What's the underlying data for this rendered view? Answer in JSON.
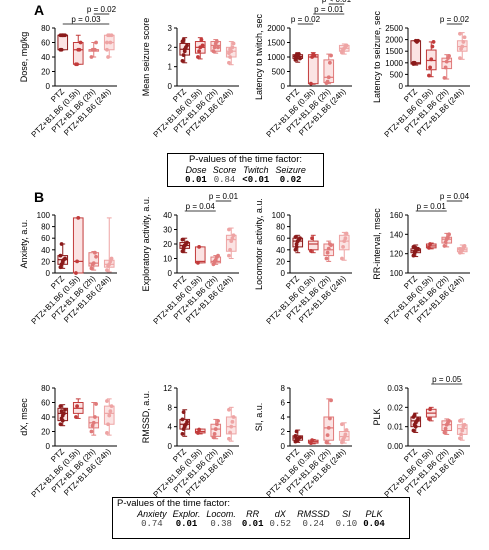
{
  "panel_labels": {
    "a": "A",
    "b": "B"
  },
  "categories": [
    "PTZ",
    "PTZ+B1.B6 (0.5h)",
    "PTZ+B1.B6 (2h)",
    "PTZ+B1.B6 (24h)"
  ],
  "colors": {
    "dark": "#8b1a1a",
    "medium": "#c23b3b",
    "light": "#e07a7a",
    "lighter": "#eea4a4",
    "box_fill": "#fbe3e3",
    "point": "#a52a2a"
  },
  "pvalue_boxes": {
    "top": {
      "title": "P-values of the time factor:",
      "headers": [
        "Dose",
        "Score",
        "Twitch",
        "Seizure"
      ],
      "values": [
        "0.01",
        "0.84",
        "<0.01",
        "0.02"
      ],
      "significant": [
        true,
        false,
        true,
        true
      ]
    },
    "bottom": {
      "title": "P-values of the time factor:",
      "headers": [
        "Anxiety",
        "Explor.",
        "Locom.",
        "RR",
        "dX",
        "RMSSD",
        "SI",
        "PLK"
      ],
      "values": [
        "0.74",
        "0.01",
        "0.38",
        "0.01",
        "0.52",
        "0.24",
        "0.10",
        "0.04"
      ],
      "significant": [
        false,
        true,
        false,
        true,
        false,
        false,
        false,
        true
      ]
    }
  },
  "chart_data": [
    {
      "type": "box",
      "id": "dose",
      "ylabel": "Dose, mg/kg",
      "ylim": [
        0,
        80
      ],
      "yticks": [
        "0",
        "20",
        "40",
        "60",
        "80"
      ],
      "categories": [
        "PTZ",
        "PTZ+B1.B6 (0.5h)",
        "PTZ+B1.B6 (2h)",
        "PTZ+B1.B6 (24h)"
      ],
      "boxes": [
        {
          "min": 50,
          "q1": 50,
          "median": 70,
          "q3": 70,
          "max": 70
        },
        {
          "min": 30,
          "q1": 30,
          "median": 50,
          "q3": 60,
          "max": 70
        },
        {
          "min": 40,
          "q1": 48,
          "median": 50,
          "q3": 50,
          "max": 60
        },
        {
          "min": 40,
          "q1": 50,
          "median": 60,
          "q3": 70,
          "max": 70
        }
      ],
      "points": [
        [
          50,
          70,
          70,
          70,
          70,
          70,
          50,
          70
        ],
        [
          30,
          30,
          50,
          50,
          60
        ],
        [
          40,
          50,
          50,
          50,
          60
        ],
        [
          60,
          70,
          70,
          60,
          70,
          50,
          40
        ]
      ],
      "brackets": [
        {
          "from": 0,
          "to": 3,
          "label": "p = 0.03"
        },
        {
          "from": 2,
          "to": 3,
          "label": "p = 0.02"
        }
      ]
    },
    {
      "type": "box",
      "id": "score",
      "ylabel": "Mean seizure score",
      "ylim": [
        0,
        3
      ],
      "yticks": [
        "0",
        "1",
        "2",
        "3"
      ],
      "categories": [
        "PTZ",
        "PTZ+B1.B6 (0.5h)",
        "PTZ+B1.B6 (2h)",
        "PTZ+B1.B6 (24h)"
      ],
      "boxes": [
        {
          "min": 1.2,
          "q1": 1.6,
          "median": 1.9,
          "q3": 2.2,
          "max": 2.5
        },
        {
          "min": 1.4,
          "q1": 1.7,
          "median": 2.0,
          "q3": 2.3,
          "max": 2.5
        },
        {
          "min": 1.7,
          "q1": 1.8,
          "median": 2.1,
          "q3": 2.3,
          "max": 2.4
        },
        {
          "min": 1.1,
          "q1": 1.5,
          "median": 1.8,
          "q3": 2.0,
          "max": 2.3
        }
      ],
      "points": [
        [
          1.3,
          1.6,
          1.8,
          2.0,
          2.1,
          2.3,
          2.4,
          1.9
        ],
        [
          1.5,
          1.8,
          2.0,
          2.4,
          2.1
        ],
        [
          1.8,
          2.0,
          2.2,
          2.3,
          2.0
        ],
        [
          1.2,
          1.5,
          1.8,
          2.0,
          2.2,
          1.7,
          1.9
        ]
      ],
      "brackets": []
    },
    {
      "type": "box",
      "id": "twitch",
      "ylabel": "Latency to twitch, sec",
      "ylim": [
        0,
        2000
      ],
      "yticks": [
        "0",
        "500",
        "1000",
        "1500",
        "2000"
      ],
      "categories": [
        "PTZ",
        "PTZ+B1.B6 (0.5h)",
        "PTZ+B1.B6 (2h)",
        "PTZ+B1.B6 (24h)"
      ],
      "boxes": [
        {
          "min": 820,
          "q1": 950,
          "median": 1020,
          "q3": 1080,
          "max": 1150
        },
        {
          "min": 60,
          "q1": 80,
          "median": 1000,
          "q3": 1080,
          "max": 1150
        },
        {
          "min": 80,
          "q1": 120,
          "median": 300,
          "q3": 900,
          "max": 1100
        },
        {
          "min": 1100,
          "q1": 1200,
          "median": 1300,
          "q3": 1400,
          "max": 1450
        }
      ],
      "points": [
        [
          900,
          1000,
          1050,
          1100,
          950,
          1020,
          1080
        ],
        [
          80,
          1000,
          1100,
          1050
        ],
        [
          100,
          150,
          300,
          800,
          1050
        ],
        [
          1150,
          1250,
          1300,
          1350,
          1400,
          1200
        ]
      ],
      "brackets": [
        {
          "from": 0,
          "to": 1,
          "label": "p = 0.02"
        },
        {
          "from": 1,
          "to": 3,
          "label": "p = 0.01"
        },
        {
          "from": 2,
          "to": 3,
          "label": "p < 0.01"
        }
      ]
    },
    {
      "type": "box",
      "id": "seizure",
      "ylabel": "Latency to seizure, sec",
      "ylim": [
        0,
        2500
      ],
      "yticks": [
        "0",
        "500",
        "1000",
        "1500",
        "2000",
        "2500"
      ],
      "categories": [
        "PTZ",
        "PTZ+B1.B6 (0.5h)",
        "PTZ+B1.B6 (2h)",
        "PTZ+B1.B6 (24h)"
      ],
      "boxes": [
        {
          "min": 900,
          "q1": 950,
          "median": 1000,
          "q3": 1950,
          "max": 1950
        },
        {
          "min": 400,
          "q1": 700,
          "median": 1100,
          "q3": 1550,
          "max": 1900
        },
        {
          "min": 300,
          "q1": 750,
          "median": 1050,
          "q3": 1200,
          "max": 1350
        },
        {
          "min": 1150,
          "q1": 1500,
          "median": 1700,
          "q3": 1950,
          "max": 2300
        }
      ],
      "points": [
        [
          950,
          1000,
          1950,
          1900,
          1950,
          1000,
          980
        ],
        [
          450,
          800,
          1150,
          1700,
          1900
        ],
        [
          350,
          800,
          1050,
          1200,
          1300
        ],
        [
          1200,
          1600,
          1700,
          1900,
          2100,
          2250
        ]
      ],
      "brackets": [
        {
          "from": 2,
          "to": 3,
          "label": "p = 0.02"
        }
      ]
    },
    {
      "type": "box",
      "id": "anxiety",
      "ylabel": "Anxiety, a.u.",
      "ylim": [
        0,
        100
      ],
      "yticks": [
        "0",
        "20",
        "40",
        "60",
        "80",
        "100"
      ],
      "categories": [
        "PTZ",
        "PTZ+B1.B6 (0.5h)",
        "PTZ+B1.B6 (2h)",
        "PTZ+B1.B6 (24h)"
      ],
      "boxes": [
        {
          "min": 8,
          "q1": 15,
          "median": 23,
          "q3": 30,
          "max": 50
        },
        {
          "min": 0,
          "q1": 0,
          "median": 20,
          "q3": 95,
          "max": 95
        },
        {
          "min": 5,
          "q1": 12,
          "median": 17,
          "q3": 35,
          "max": 37
        },
        {
          "min": 2,
          "q1": 10,
          "median": 15,
          "q3": 22,
          "max": 95
        }
      ],
      "points": [
        [
          10,
          15,
          20,
          23,
          25,
          30,
          50,
          18
        ],
        [
          0,
          20,
          95
        ],
        [
          8,
          15,
          17,
          35,
          28
        ],
        [
          5,
          12,
          15,
          20,
          25
        ]
      ],
      "brackets": []
    },
    {
      "type": "box",
      "id": "explor",
      "ylabel": "Exploratory activity, a.u.",
      "ylim": [
        0,
        40
      ],
      "yticks": [
        "0",
        "10",
        "20",
        "30",
        "40"
      ],
      "categories": [
        "PTZ",
        "PTZ+B1.B6 (0.5h)",
        "PTZ+B1.B6 (2h)",
        "PTZ+B1.B6 (24h)"
      ],
      "boxes": [
        {
          "min": 14,
          "q1": 17,
          "median": 19,
          "q3": 21,
          "max": 24
        },
        {
          "min": 7,
          "q1": 7,
          "median": 8,
          "q3": 18,
          "max": 18
        },
        {
          "min": 6,
          "q1": 7,
          "median": 8,
          "q3": 11,
          "max": 12
        },
        {
          "min": 10,
          "q1": 15,
          "median": 23,
          "q3": 26,
          "max": 31
        }
      ],
      "points": [
        [
          15,
          17,
          19,
          20,
          21,
          23,
          18,
          19
        ],
        [
          7,
          18
        ],
        [
          6,
          8,
          9,
          11,
          12
        ],
        [
          12,
          16,
          22,
          24,
          26,
          30
        ]
      ],
      "brackets": [
        {
          "from": 0,
          "to": 2,
          "label": "p = 0.04"
        },
        {
          "from": 2,
          "to": 3,
          "label": "p = 0.01"
        }
      ]
    },
    {
      "type": "box",
      "id": "locom",
      "ylabel": "Locomotor activity, a.u.",
      "ylim": [
        0,
        100
      ],
      "yticks": [
        "0",
        "20",
        "40",
        "60",
        "80",
        "100"
      ],
      "categories": [
        "PTZ",
        "PTZ+B1.B6 (0.5h)",
        "PTZ+B1.B6 (2h)",
        "PTZ+B1.B6 (24h)"
      ],
      "boxes": [
        {
          "min": 35,
          "q1": 45,
          "median": 55,
          "q3": 60,
          "max": 65
        },
        {
          "min": 35,
          "q1": 40,
          "median": 50,
          "q3": 55,
          "max": 65
        },
        {
          "min": 20,
          "q1": 30,
          "median": 40,
          "q3": 50,
          "max": 55
        },
        {
          "min": 22,
          "q1": 40,
          "median": 55,
          "q3": 65,
          "max": 70
        }
      ],
      "points": [
        [
          40,
          50,
          55,
          58,
          60,
          62,
          45,
          55
        ],
        [
          38,
          60
        ],
        [
          25,
          35,
          42,
          50,
          48
        ],
        [
          25,
          45,
          55,
          60,
          68
        ]
      ],
      "brackets": []
    },
    {
      "type": "box",
      "id": "rr",
      "ylabel": "RR-interval, msec",
      "ylim": [
        100,
        160
      ],
      "yticks": [
        "100",
        "120",
        "140",
        "160"
      ],
      "categories": [
        "PTZ",
        "PTZ+B1.B6 (0.5h)",
        "PTZ+B1.B6 (2h)",
        "PTZ+B1.B6 (24h)"
      ],
      "boxes": [
        {
          "min": 117,
          "q1": 121,
          "median": 123,
          "q3": 125,
          "max": 129
        },
        {
          "min": 125,
          "q1": 126,
          "median": 128,
          "q3": 130,
          "max": 131
        },
        {
          "min": 127,
          "q1": 131,
          "median": 135,
          "q3": 137,
          "max": 141
        },
        {
          "min": 120,
          "q1": 122,
          "median": 124,
          "q3": 126,
          "max": 129
        }
      ],
      "points": [
        [
          118,
          121,
          123,
          124,
          125,
          127,
          122,
          126
        ],
        [
          126,
          130
        ],
        [
          128,
          132,
          135,
          137,
          140
        ],
        [
          121,
          123,
          124,
          126,
          128,
          125
        ]
      ],
      "brackets": [
        {
          "from": 0,
          "to": 2,
          "label": "p = 0.01"
        },
        {
          "from": 2,
          "to": 3,
          "label": "p = 0.04"
        }
      ]
    },
    {
      "type": "box",
      "id": "dx",
      "ylabel": "dX, msec",
      "ylim": [
        0,
        80
      ],
      "yticks": [
        "0",
        "20",
        "40",
        "60",
        "80"
      ],
      "categories": [
        "PTZ",
        "PTZ+B1.B6 (0.5h)",
        "PTZ+B1.B6 (2h)",
        "PTZ+B1.B6 (24h)"
      ],
      "boxes": [
        {
          "min": 28,
          "q1": 35,
          "median": 45,
          "q3": 52,
          "max": 57
        },
        {
          "min": 38,
          "q1": 45,
          "median": 52,
          "q3": 60,
          "max": 65
        },
        {
          "min": 15,
          "q1": 25,
          "median": 32,
          "q3": 40,
          "max": 60
        },
        {
          "min": 15,
          "q1": 30,
          "median": 45,
          "q3": 55,
          "max": 65
        }
      ],
      "points": [
        [
          30,
          38,
          42,
          45,
          50,
          55,
          48,
          35
        ],
        [
          40,
          55
        ],
        [
          20,
          28,
          32,
          40,
          58
        ],
        [
          18,
          30,
          42,
          48,
          55,
          62
        ]
      ],
      "brackets": []
    },
    {
      "type": "box",
      "id": "rmssd",
      "ylabel": "RMSSD, a.u.",
      "ylim": [
        0,
        12
      ],
      "yticks": [
        "0",
        "4",
        "8",
        "12"
      ],
      "categories": [
        "PTZ",
        "PTZ+B1.B6 (0.5h)",
        "PTZ+B1.B6 (2h)",
        "PTZ+B1.B6 (24h)"
      ],
      "boxes": [
        {
          "min": 2,
          "q1": 3.5,
          "median": 4.5,
          "q3": 5.5,
          "max": 7.5
        },
        {
          "min": 2.5,
          "q1": 2.7,
          "median": 3,
          "q3": 3.5,
          "max": 3.5
        },
        {
          "min": 1.5,
          "q1": 2,
          "median": 3.5,
          "q3": 4.5,
          "max": 5.5
        },
        {
          "min": 1,
          "q1": 2.5,
          "median": 4,
          "q3": 6,
          "max": 8
        }
      ],
      "points": [
        [
          2.5,
          3.5,
          4,
          4.5,
          5,
          5.5,
          7,
          4.2
        ],
        [
          2.7,
          3.4
        ],
        [
          1.8,
          2.5,
          3.5,
          4.5,
          5.2
        ],
        [
          1.5,
          2.8,
          4,
          5,
          6,
          7.5
        ]
      ],
      "brackets": []
    },
    {
      "type": "box",
      "id": "si",
      "ylabel": "SI, a.u.",
      "ylim": [
        0,
        8
      ],
      "yticks": [
        "0",
        "2",
        "4",
        "6",
        "8"
      ],
      "categories": [
        "PTZ",
        "PTZ+B1.B6 (0.5h)",
        "PTZ+B1.B6 (2h)",
        "PTZ+B1.B6 (24h)"
      ],
      "boxes": [
        {
          "min": 0.5,
          "q1": 0.8,
          "median": 1.1,
          "q3": 1.4,
          "max": 2.2
        },
        {
          "min": 0.3,
          "q1": 0.4,
          "median": 0.6,
          "q3": 0.8,
          "max": 0.9
        },
        {
          "min": 0.3,
          "q1": 0.8,
          "median": 2.5,
          "q3": 4,
          "max": 6.5
        },
        {
          "min": 0.4,
          "q1": 0.8,
          "median": 1.3,
          "q3": 2,
          "max": 3.2
        }
      ],
      "points": [
        [
          0.6,
          0.9,
          1.0,
          1.1,
          1.2,
          1.4,
          2.0,
          0.8
        ],
        [
          0.4,
          0.8
        ],
        [
          0.5,
          1.5,
          2.5,
          3.8,
          6.3
        ],
        [
          0.5,
          0.9,
          1.2,
          1.6,
          2.2,
          3.0
        ]
      ],
      "brackets": []
    },
    {
      "type": "box",
      "id": "plk",
      "ylabel": "PLK",
      "ylim": [
        0,
        0.03
      ],
      "yticks": [
        "0.00",
        "0.01",
        "0.02",
        "0.03"
      ],
      "categories": [
        "PTZ",
        "PTZ+B1.B6 (0.5h)",
        "PTZ+B1.B6 (2h)",
        "PTZ+B1.B6 (24h)"
      ],
      "boxes": [
        {
          "min": 0.007,
          "q1": 0.01,
          "median": 0.013,
          "q3": 0.015,
          "max": 0.017
        },
        {
          "min": 0.013,
          "q1": 0.015,
          "median": 0.017,
          "q3": 0.019,
          "max": 0.02
        },
        {
          "min": 0.006,
          "q1": 0.008,
          "median": 0.011,
          "q3": 0.013,
          "max": 0.014
        },
        {
          "min": 0.003,
          "q1": 0.006,
          "median": 0.009,
          "q3": 0.011,
          "max": 0.014
        }
      ],
      "points": [
        [
          0.008,
          0.011,
          0.012,
          0.013,
          0.014,
          0.015,
          0.016,
          0.01
        ],
        [
          0.014,
          0.019
        ],
        [
          0.007,
          0.009,
          0.011,
          0.012,
          0.013
        ],
        [
          0.004,
          0.006,
          0.008,
          0.01,
          0.011,
          0.013
        ]
      ],
      "brackets": [
        {
          "from": 1,
          "to": 3,
          "label": "p = 0.05"
        }
      ]
    }
  ]
}
